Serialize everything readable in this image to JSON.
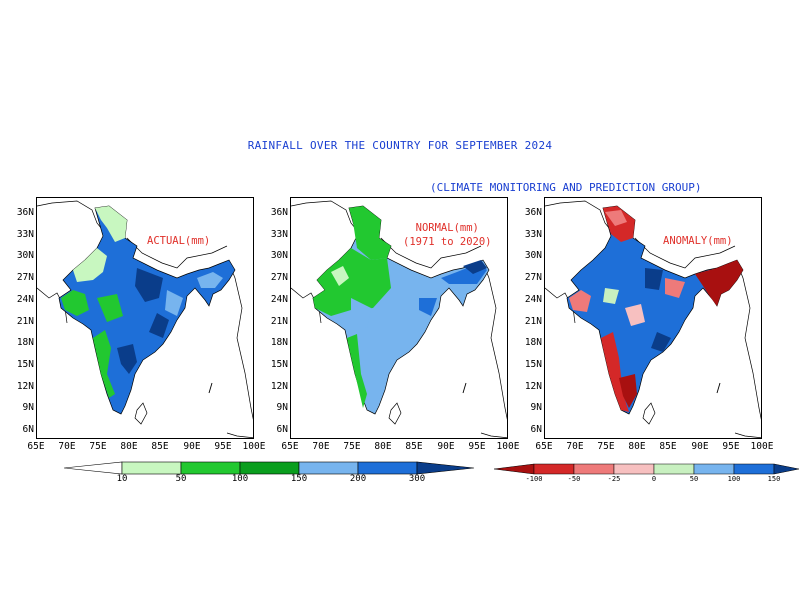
{
  "title": "RAINFALL OVER THE COUNTRY FOR SEPTEMBER 2024",
  "subtitle": "(CLIMATE MONITORING AND PREDICTION GROUP)",
  "panels": [
    {
      "label": "ACTUAL(mm)",
      "scheme": "actual"
    },
    {
      "label": "NORMAL(mm)\n(1971 to 2020)",
      "scheme": "normal"
    },
    {
      "label": "ANOMALY(mm)",
      "scheme": "anomaly"
    }
  ],
  "lat_ticks": [
    "36N",
    "33N",
    "30N",
    "27N",
    "24N",
    "21N",
    "18N",
    "15N",
    "12N",
    "9N",
    "6N"
  ],
  "lon_ticks": [
    "65E",
    "70E",
    "75E",
    "80E",
    "85E",
    "90E",
    "95E",
    "100E"
  ],
  "rain_colorbar": {
    "labels": [
      "10",
      "50",
      "100",
      "150",
      "200",
      "300"
    ],
    "colors": [
      "#ffffff",
      "#c8f7c0",
      "#22c830",
      "#0a9e1e",
      "#77b4ee",
      "#1e6fd8",
      "#0a3d8a"
    ]
  },
  "anomaly_colorbar": {
    "labels": [
      "-100",
      "-50",
      "-25",
      "0",
      "50",
      "100",
      "150"
    ],
    "colors": [
      "#a81010",
      "#d42828",
      "#ee7a7a",
      "#f7c0c0",
      "#c8f0c0",
      "#77b4ee",
      "#1e6fd8",
      "#0a3d8a"
    ]
  }
}
